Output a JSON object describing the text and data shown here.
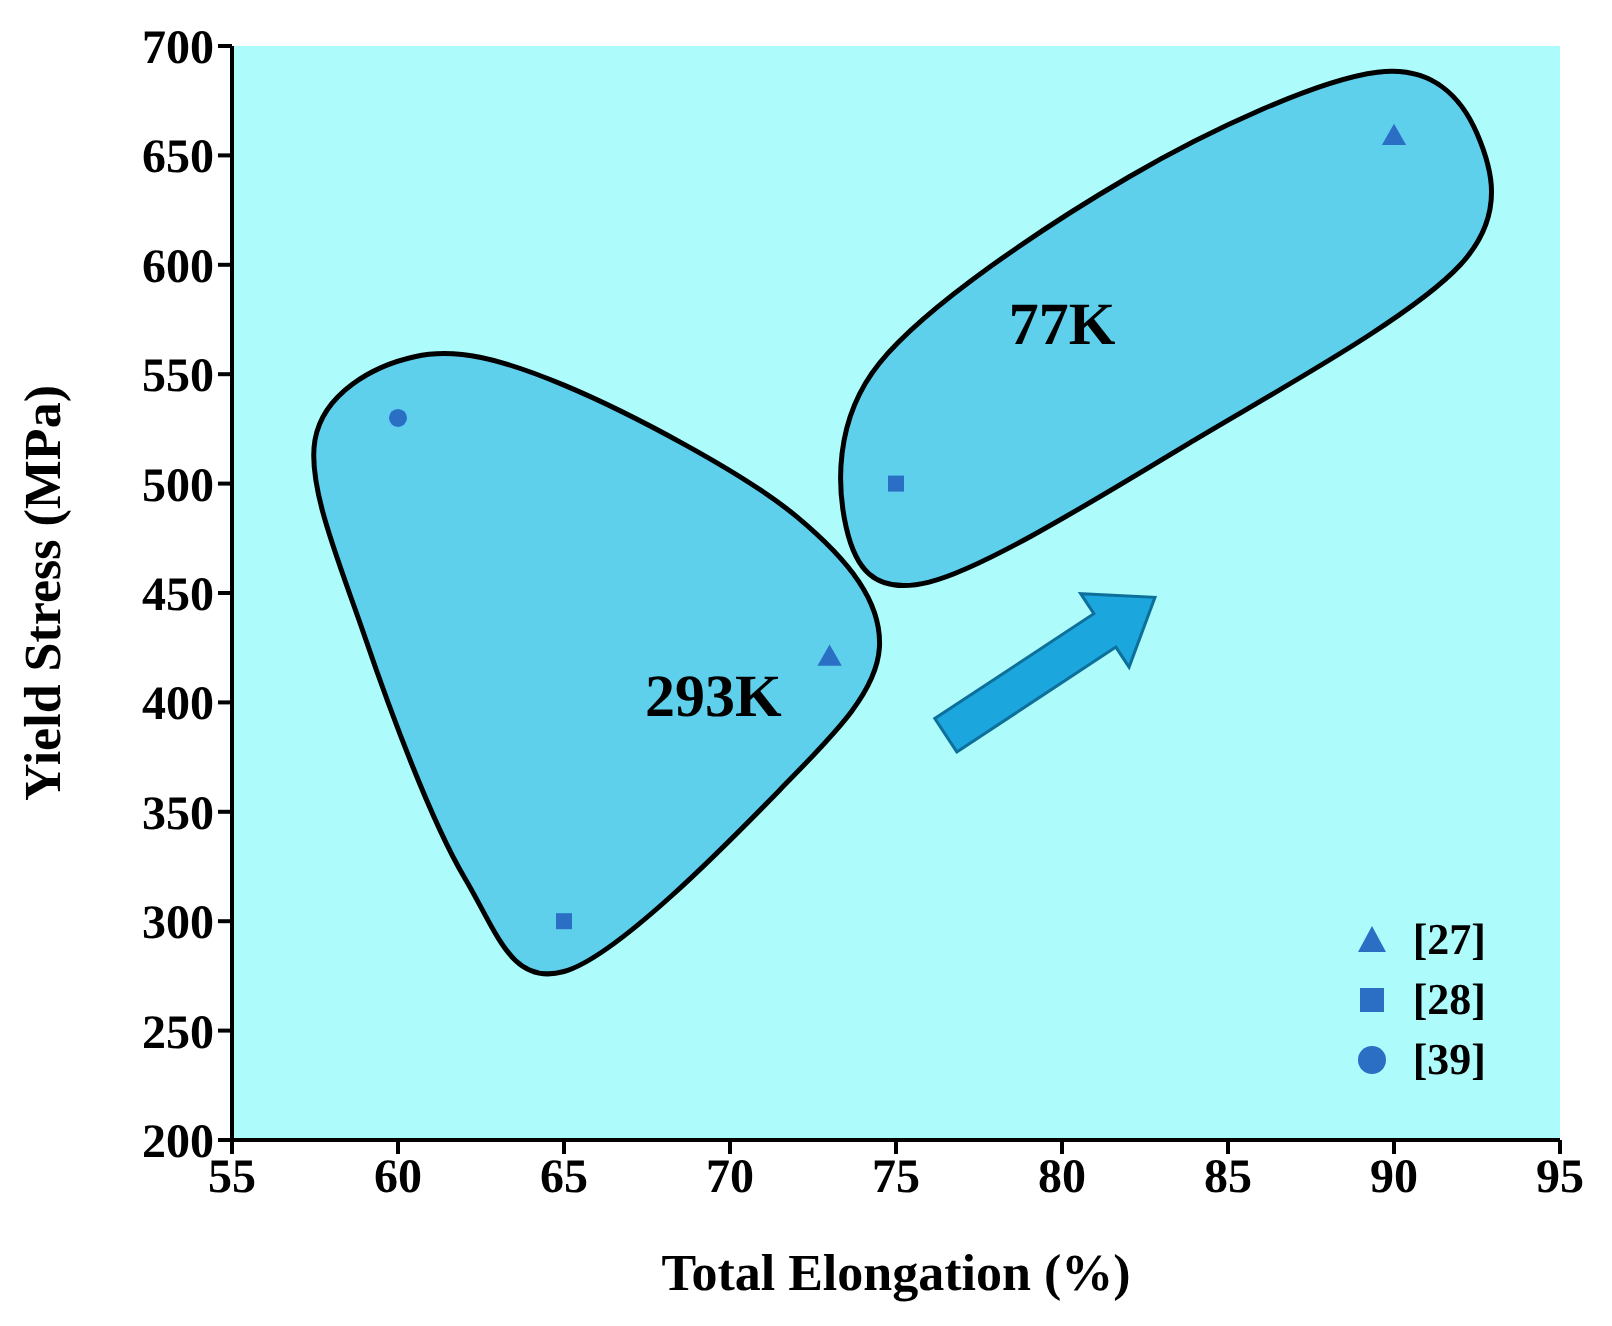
{
  "chart_data": {
    "type": "scatter",
    "xlabel": "Total Elongation (%)",
    "ylabel": "Yield Stress (MPa)",
    "annotations": [
      "293K",
      "77K"
    ],
    "series": [
      {
        "name": "[27]",
        "color": "#2a6fc4",
        "marker": "triangle",
        "x": [
          73,
          90
        ],
        "values": [
          420,
          658
        ]
      },
      {
        "name": "[28]",
        "color": "#2a6fc4",
        "marker": "square",
        "x": [
          65,
          75
        ],
        "values": [
          300,
          500
        ]
      },
      {
        "name": "[39]",
        "color": "#2a6fc4",
        "marker": "circle",
        "x": [
          60
        ],
        "values": [
          530
        ]
      }
    ],
    "xlim": [
      55,
      95
    ],
    "xticks": [
      55,
      60,
      65,
      70,
      75,
      80,
      85,
      90,
      95
    ],
    "ylim": [
      200,
      700
    ],
    "yticks": [
      200,
      250,
      300,
      350,
      400,
      450,
      500,
      550,
      600,
      650,
      700
    ],
    "grid": false,
    "legend": "bottom right"
  }
}
